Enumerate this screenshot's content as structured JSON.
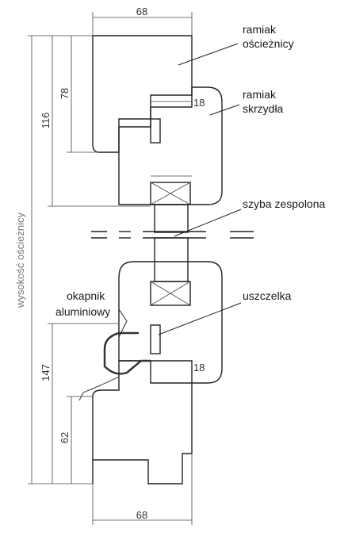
{
  "labels": {
    "ramiak_oscieznicy": [
      "ramiak",
      "ościeżnicy"
    ],
    "ramiak_skrzydla": [
      "ramiak",
      "skrzydła"
    ],
    "szyba": "szyba zespolona",
    "uszczelka": "uszczelka",
    "okapnik": [
      "okapnik",
      "aluminiowy"
    ],
    "wysokosc": "wysokość ościeżnicy"
  },
  "dimensions": {
    "top_width": "68",
    "bottom_width": "68",
    "dim_78": "78",
    "dim_116": "116",
    "dim_147": "147",
    "dim_62": "62",
    "dim_18_top": "18",
    "dim_18_bottom": "18"
  },
  "colors": {
    "ink": "#222222",
    "hatch": "#555555",
    "paper": "#ffffff"
  }
}
